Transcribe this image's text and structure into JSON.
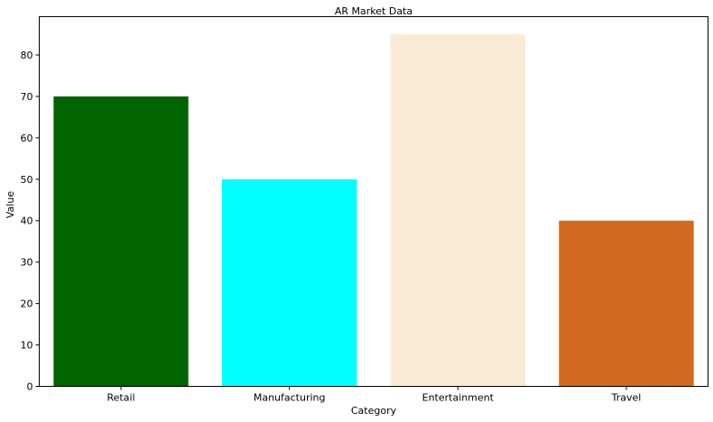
{
  "chart_data": {
    "type": "bar",
    "title": "AR Market Data",
    "xlabel": "Category",
    "ylabel": "Value",
    "categories": [
      "Retail",
      "Manufacturing",
      "Entertainment",
      "Travel"
    ],
    "values": [
      70,
      50,
      85,
      40
    ],
    "colors": [
      "#006400",
      "#00FFFF",
      "#FAEBD7",
      "#D2691E"
    ],
    "ylim": [
      0,
      89.25
    ],
    "yticks": [
      0,
      10,
      20,
      30,
      40,
      50,
      60,
      70,
      80
    ],
    "grid": false,
    "legend": "none"
  }
}
